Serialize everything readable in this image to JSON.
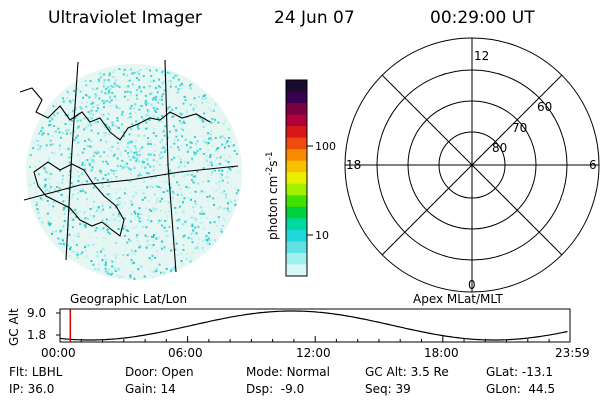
{
  "header": {
    "instrument": "Ultraviolet Imager",
    "date": "24 Jun 07",
    "time": "00:29:00 UT"
  },
  "image_panel": {
    "caption": "Geographic Lat/Lon"
  },
  "colorbar": {
    "unit_label": "photon cm",
    "unit_sup1": "-2",
    "unit_mid": "s",
    "unit_sup2": "-1",
    "ticks": [
      "100",
      "10"
    ],
    "colors": [
      "#1a0a2e",
      "#3a0050",
      "#7a0040",
      "#b0003a",
      "#d81818",
      "#f04a10",
      "#f88a00",
      "#f8c000",
      "#e8f000",
      "#a0f000",
      "#40e000",
      "#00d040",
      "#00d8a0",
      "#20d8d8",
      "#60e0e0",
      "#a0f0f0",
      "#d8f8f8"
    ]
  },
  "polar": {
    "caption": "Apex MLat/MLT",
    "mlt_labels": {
      "top": "12",
      "left": "18",
      "right": "6",
      "bottom": "0"
    },
    "lat_labels": [
      "60",
      "70",
      "80"
    ]
  },
  "timeline": {
    "axis_label": "GC Alt",
    "y_ticks": [
      "9.0",
      "1.8"
    ],
    "x_ticks": [
      "00:00",
      "06:00",
      "12:00",
      "18:00",
      "23:59"
    ],
    "marker_time": "00:29"
  },
  "info": {
    "flt_label": "Flt:",
    "flt_value": "LBHL",
    "door_label": "Door:",
    "door_value": "Open",
    "mode_label": "Mode:",
    "mode_value": "Normal",
    "gcalt_label": "GC Alt:",
    "gcalt_value": "3.5 Re",
    "glat_label": "GLat:",
    "glat_value": "-13.1",
    "ip_label": "IP:",
    "ip_value": "36.0",
    "gain_label": "Gain:",
    "gain_value": "14",
    "dsp_label": "Dsp:",
    "dsp_value": "-9.0",
    "seq_label": "Seq:",
    "seq_value": "39",
    "glon_label": "GLon:",
    "glon_value": "44.5"
  }
}
